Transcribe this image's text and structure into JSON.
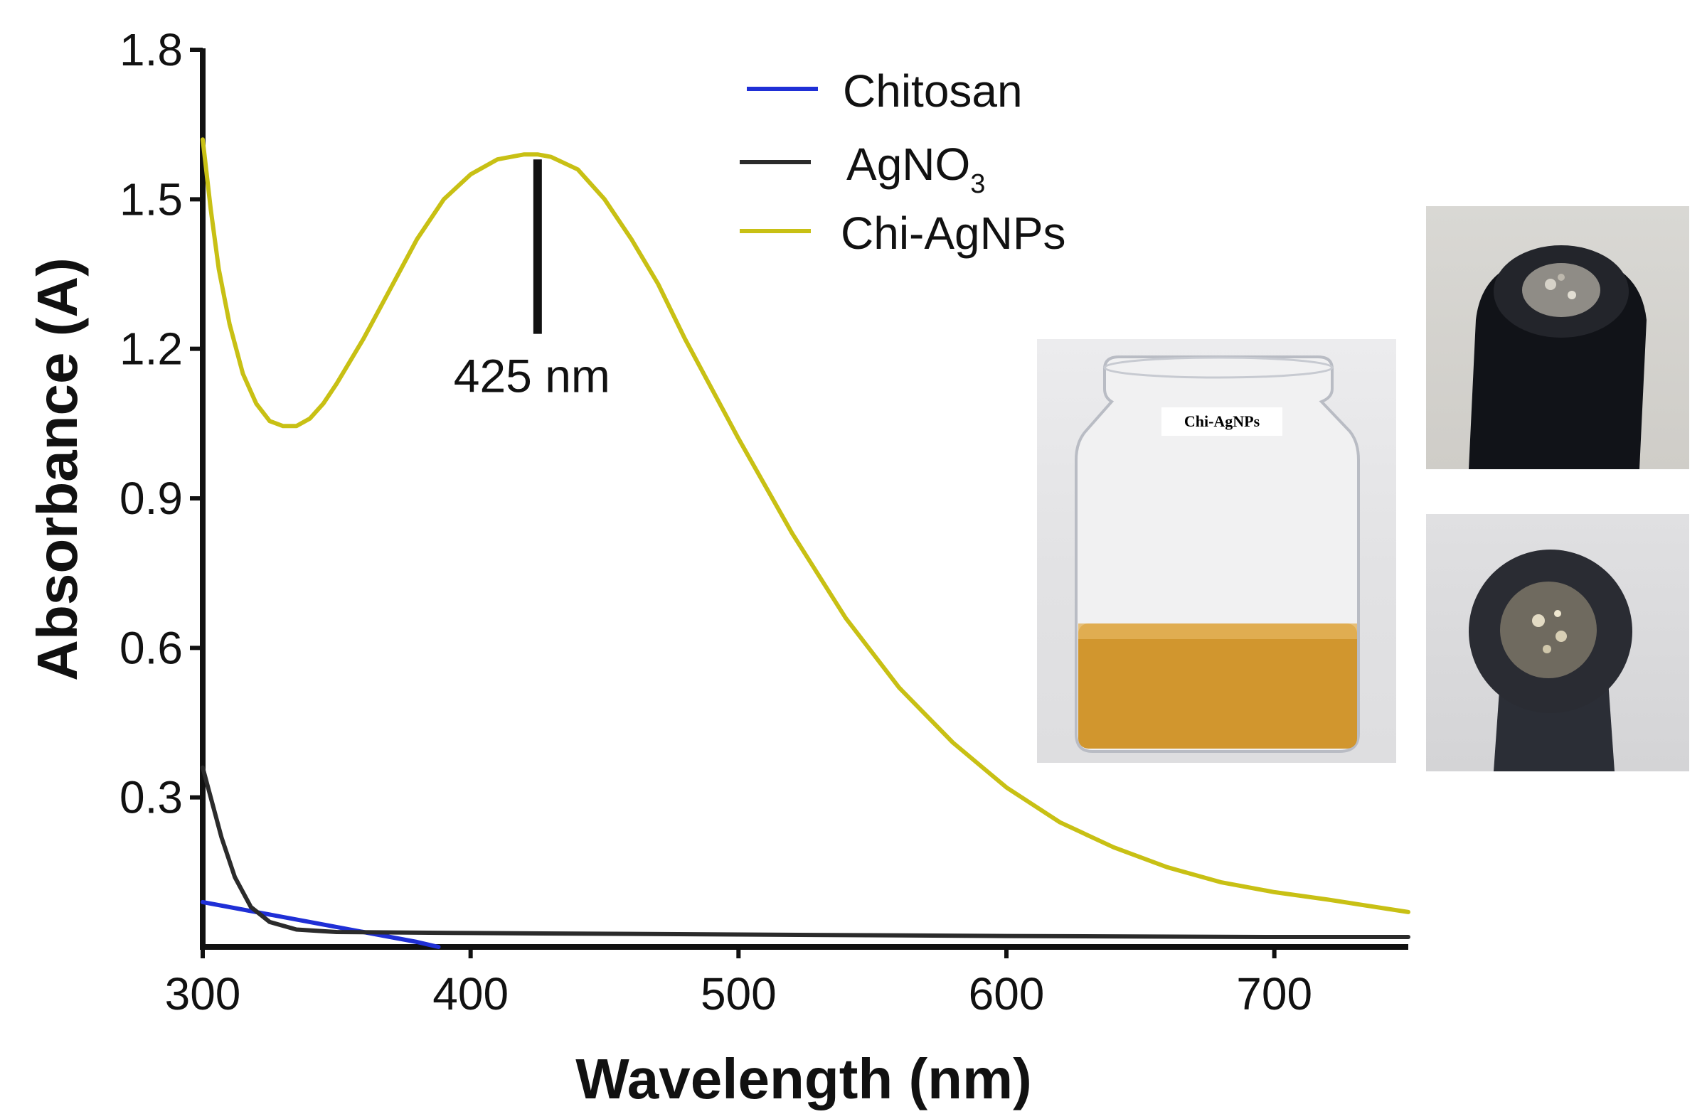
{
  "chart_data": {
    "type": "line",
    "title": "",
    "xlabel": "Wavelength (nm)",
    "ylabel": "Absorbance (A)",
    "xlim": [
      300,
      750
    ],
    "ylim": [
      0,
      1.8
    ],
    "x_ticks": [
      300,
      400,
      500,
      600,
      700
    ],
    "y_ticks": [
      0.3,
      0.6,
      0.9,
      1.2,
      1.5,
      1.8
    ],
    "x_tick_labels": [
      "300",
      "400",
      "500",
      "600",
      "700"
    ],
    "y_tick_labels": [
      "0.3",
      "0.6",
      "0.9",
      "1.2",
      "1.5",
      "1.8"
    ],
    "legend_position": "top-center",
    "series": [
      {
        "name": "Chitosan",
        "color": "#1f2fd6",
        "x": [
          300,
          320,
          340,
          360,
          380,
          388
        ],
        "y": [
          0.09,
          0.07,
          0.05,
          0.03,
          0.01,
          0.0
        ]
      },
      {
        "name": "AgNO",
        "name_subscript": "3",
        "color": "#2b2b2b",
        "x": [
          300,
          303,
          307,
          312,
          318,
          325,
          335,
          350,
          400,
          500,
          600,
          700,
          750
        ],
        "y": [
          0.36,
          0.3,
          0.22,
          0.14,
          0.08,
          0.05,
          0.035,
          0.03,
          0.028,
          0.025,
          0.022,
          0.02,
          0.02
        ]
      },
      {
        "name": "Chi-AgNPs",
        "color": "#c8c014",
        "x": [
          300,
          303,
          306,
          310,
          315,
          320,
          325,
          330,
          335,
          340,
          345,
          350,
          360,
          370,
          380,
          390,
          400,
          410,
          420,
          425,
          430,
          440,
          450,
          460,
          470,
          480,
          490,
          500,
          520,
          540,
          560,
          580,
          600,
          620,
          640,
          660,
          680,
          700,
          720,
          750
        ],
        "y": [
          1.62,
          1.48,
          1.36,
          1.25,
          1.15,
          1.09,
          1.055,
          1.045,
          1.045,
          1.06,
          1.09,
          1.13,
          1.22,
          1.32,
          1.42,
          1.5,
          1.55,
          1.58,
          1.59,
          1.59,
          1.585,
          1.56,
          1.5,
          1.42,
          1.33,
          1.22,
          1.12,
          1.02,
          0.83,
          0.66,
          0.52,
          0.41,
          0.32,
          0.25,
          0.2,
          0.16,
          0.13,
          0.11,
          0.095,
          0.07
        ]
      }
    ],
    "annotations": [
      {
        "text": "425 nm",
        "x": 425,
        "marker_from": 1.23,
        "marker_to": 1.58
      }
    ]
  },
  "photos": {
    "vial_label": "Chi-AgNPs"
  }
}
